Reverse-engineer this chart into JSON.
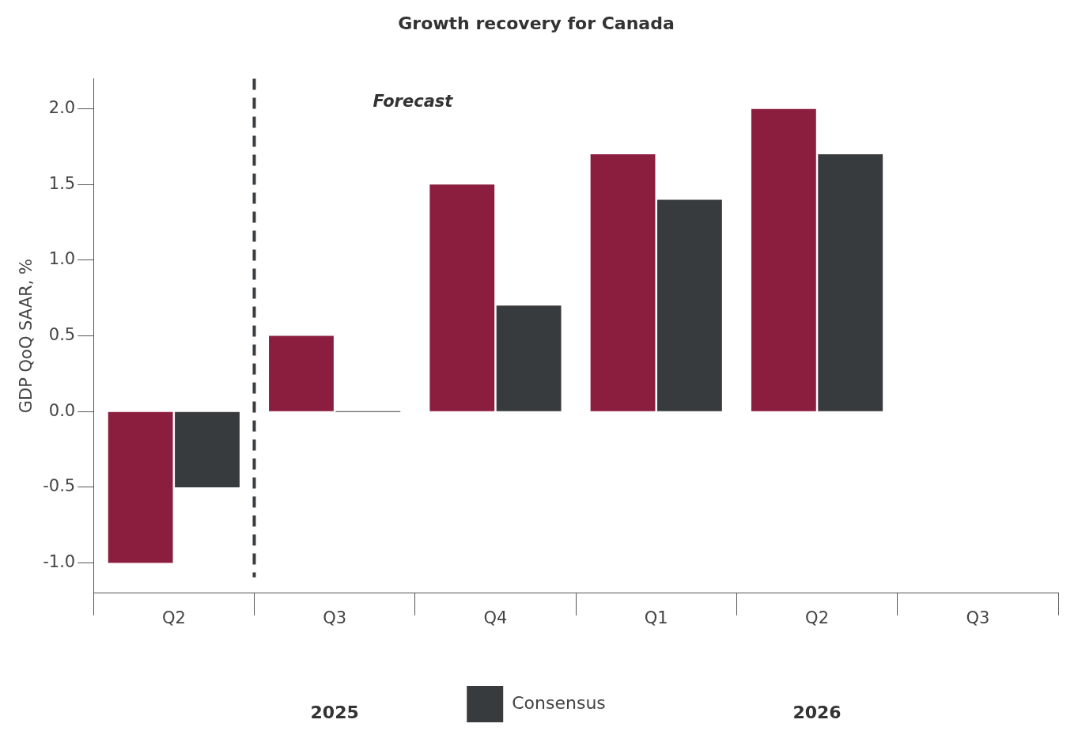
{
  "chart_data": {
    "type": "bar",
    "title": "Growth recovery for Canada",
    "ylabel": "GDP QoQ SAAR, %",
    "categories": [
      "Q2",
      "Q3",
      "Q4",
      "Q1",
      "Q2",
      "Q3"
    ],
    "series": [
      {
        "color": "#8b1e3f",
        "values": [
          -1.0,
          0.5,
          1.5,
          1.7,
          2.0,
          null
        ]
      },
      {
        "name": "Consensus",
        "color": "#383b3e",
        "values": [
          -0.5,
          0.0,
          0.7,
          1.4,
          1.7,
          null
        ]
      }
    ],
    "ylim": [
      -1.2,
      2.2
    ],
    "yticks": [
      {
        "value": -1,
        "label": "-1.0"
      },
      {
        "value": -0.5,
        "label": "-0.5"
      },
      {
        "value": 0,
        "label": "0.0"
      },
      {
        "value": 0.5,
        "label": "0.5"
      },
      {
        "value": 1,
        "label": "1.0"
      },
      {
        "value": 1.5,
        "label": "1.5"
      },
      {
        "value": 2,
        "label": "2.0"
      }
    ],
    "annotations": [
      "Forecast",
      "2025",
      "2026"
    ],
    "grid": false,
    "legend": "bottom"
  }
}
